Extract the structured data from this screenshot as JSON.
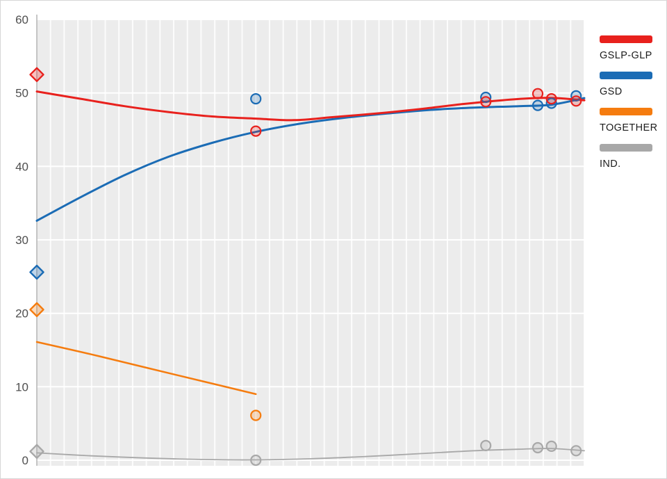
{
  "legend": {
    "items": [
      {
        "label": "GSLP-GLP",
        "color": "#e8211d"
      },
      {
        "label": "GSD",
        "color": "#1b6cb5"
      },
      {
        "label": "TOGETHER",
        "color": "#f57c0f"
      },
      {
        "label": "IND.",
        "color": "#a8a8a8"
      }
    ]
  },
  "chart_data": {
    "type": "line",
    "title": "",
    "xlabel": "",
    "ylabel": "",
    "ylim": [
      0,
      60
    ],
    "yticks": [
      0,
      10,
      20,
      30,
      40,
      50,
      60
    ],
    "x_range_pct": [
      0,
      100
    ],
    "grid": "white-on-gray",
    "plot_background": "#ececec",
    "gridline_color": "#ffffff",
    "axis_color": "#b3b3b3",
    "tick_label_color": "#4f4f4f",
    "legend_position": "right",
    "series": [
      {
        "name": "GSLP-GLP",
        "color": "#e8211d",
        "line_width": 3,
        "trend": [
          [
            0,
            50.2
          ],
          [
            8,
            49.2
          ],
          [
            16,
            48.2
          ],
          [
            24,
            47.4
          ],
          [
            32,
            46.8
          ],
          [
            40,
            46.5
          ],
          [
            47,
            46.3
          ],
          [
            54,
            46.7
          ],
          [
            62,
            47.2
          ],
          [
            70,
            47.8
          ],
          [
            78,
            48.5
          ],
          [
            85,
            49.0
          ],
          [
            91,
            49.3
          ],
          [
            95,
            49.3
          ],
          [
            100,
            49.0
          ]
        ],
        "election_result": [
          [
            0,
            52.5
          ]
        ],
        "polls": [
          [
            40,
            44.8
          ],
          [
            82,
            48.8
          ],
          [
            91.5,
            49.9
          ],
          [
            94,
            49.2
          ],
          [
            98.5,
            48.9
          ]
        ]
      },
      {
        "name": "GSD",
        "color": "#1b6cb5",
        "line_width": 3,
        "trend": [
          [
            0,
            32.6
          ],
          [
            8,
            35.8
          ],
          [
            16,
            38.8
          ],
          [
            24,
            41.3
          ],
          [
            32,
            43.2
          ],
          [
            40,
            44.7
          ],
          [
            48,
            45.8
          ],
          [
            56,
            46.6
          ],
          [
            64,
            47.2
          ],
          [
            72,
            47.7
          ],
          [
            80,
            48.0
          ],
          [
            88,
            48.2
          ],
          [
            94,
            48.4
          ],
          [
            100,
            49.3
          ]
        ],
        "election_result": [
          [
            0,
            25.6
          ]
        ],
        "polls": [
          [
            40,
            49.2
          ],
          [
            82,
            49.4
          ],
          [
            91.5,
            48.3
          ],
          [
            94,
            48.6
          ],
          [
            98.5,
            49.6
          ]
        ]
      },
      {
        "name": "TOGETHER",
        "color": "#f57c0f",
        "line_width": 2.5,
        "trend": [
          [
            0,
            16.1
          ],
          [
            10,
            14.4
          ],
          [
            20,
            12.6
          ],
          [
            30,
            10.8
          ],
          [
            40,
            9.0
          ]
        ],
        "election_result": [
          [
            0,
            20.5
          ]
        ],
        "polls": [
          [
            40,
            6.1
          ]
        ]
      },
      {
        "name": "IND.",
        "color": "#a8a8a8",
        "line_width": 1.8,
        "trend": [
          [
            0,
            1.0
          ],
          [
            10,
            0.6
          ],
          [
            20,
            0.3
          ],
          [
            30,
            0.1
          ],
          [
            40,
            0.05
          ],
          [
            50,
            0.2
          ],
          [
            60,
            0.5
          ],
          [
            70,
            0.9
          ],
          [
            80,
            1.3
          ],
          [
            88,
            1.5
          ],
          [
            94,
            1.6
          ],
          [
            100,
            1.3
          ]
        ],
        "election_result": [
          [
            0,
            1.2
          ]
        ],
        "polls": [
          [
            40,
            0.0
          ],
          [
            82,
            2.0
          ],
          [
            91.5,
            1.7
          ],
          [
            94,
            1.9
          ],
          [
            98.5,
            1.3
          ]
        ]
      }
    ]
  }
}
